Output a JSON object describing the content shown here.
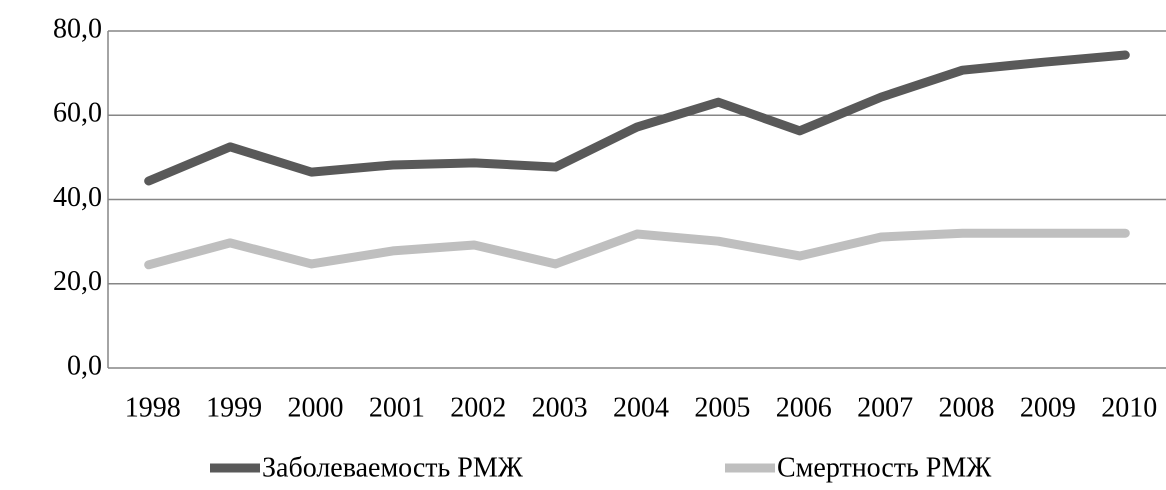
{
  "chart_data": {
    "type": "line",
    "categories": [
      "1998",
      "1999",
      "2000",
      "2001",
      "2002",
      "2003",
      "2004",
      "2005",
      "2006",
      "2007",
      "2008",
      "2009",
      "2010"
    ],
    "series": [
      {
        "name": "Заболеваемость РМЖ",
        "color": "#595959",
        "values": [
          44.4,
          52.5,
          46.5,
          48.2,
          48.7,
          47.7,
          57.2,
          63.1,
          56.3,
          64.3,
          70.7,
          72.6,
          74.3
        ]
      },
      {
        "name": "Смертность РМЖ",
        "color": "#bfbfbf",
        "values": [
          24.5,
          29.7,
          24.7,
          27.8,
          29.2,
          24.7,
          31.8,
          30.1,
          26.6,
          31.1,
          32.0,
          32.0,
          32.0
        ]
      }
    ],
    "ylim": [
      0,
      80
    ],
    "yticks": [
      {
        "value": 0,
        "label": "0,0"
      },
      {
        "value": 20,
        "label": "20,0"
      },
      {
        "value": 40,
        "label": "40,0"
      },
      {
        "value": 60,
        "label": "60,0"
      },
      {
        "value": 80,
        "label": "80,0"
      }
    ],
    "grid": true
  }
}
